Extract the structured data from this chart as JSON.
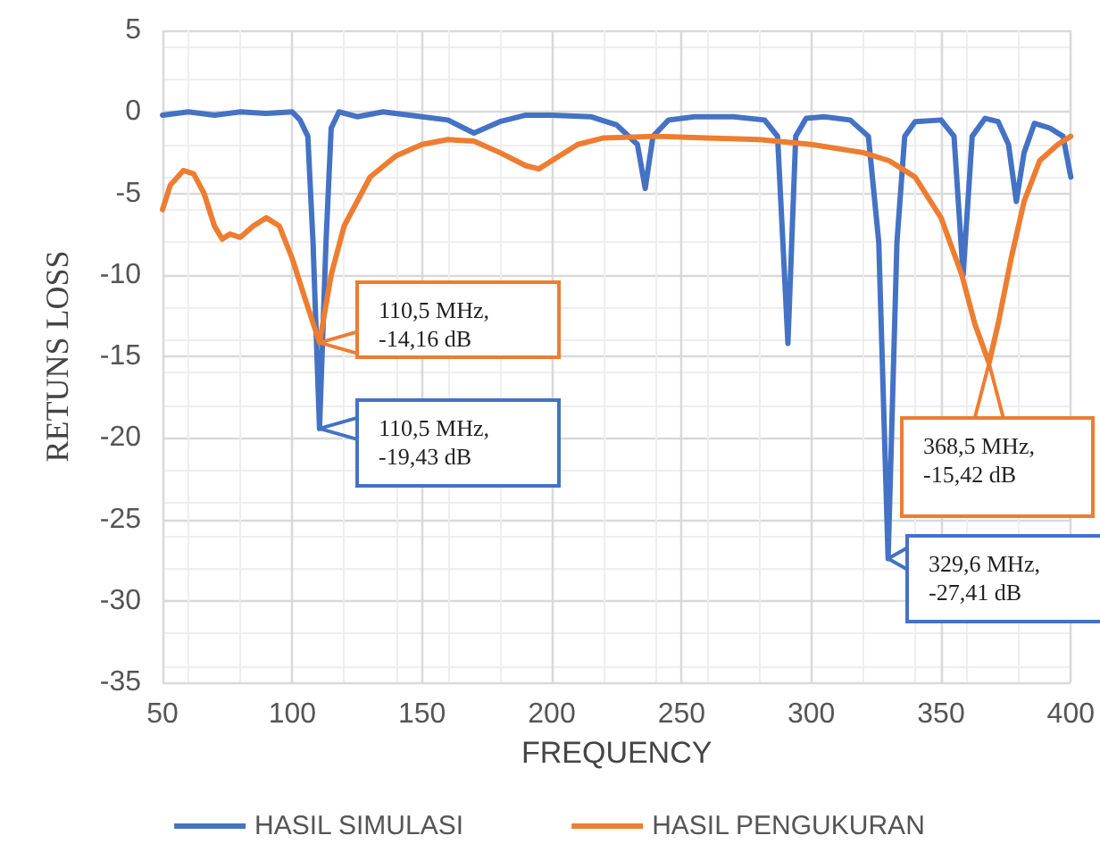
{
  "chart_data": {
    "type": "line",
    "xlabel": "FREQUENCY",
    "ylabel": "RETUNS LOSS",
    "xlim": [
      50,
      400
    ],
    "xticks": [
      50,
      100,
      150,
      200,
      250,
      300,
      350,
      400
    ],
    "ylim": [
      -35,
      5
    ],
    "yticks": [
      -35,
      -30,
      -25,
      -20,
      -15,
      -10,
      -5,
      0,
      5
    ],
    "grid": true,
    "legend": "bottom",
    "marker": "none",
    "line_style": "solid",
    "series": [
      {
        "name": "HASIL SIMULASI",
        "color": "#4472c4",
        "x": [
          50,
          60,
          70,
          80,
          90,
          100,
          103,
          106,
          108,
          110.5,
          113,
          115,
          118,
          125,
          135,
          150,
          160,
          170,
          180,
          190,
          200,
          215,
          225,
          233,
          236,
          239,
          245,
          255,
          270,
          282,
          287,
          291,
          294,
          298,
          305,
          315,
          322,
          326,
          329.6,
          333,
          336,
          340,
          350,
          355,
          358.5,
          362,
          367,
          372,
          376,
          379,
          382,
          386,
          392,
          397,
          400
        ],
        "values": [
          -0.2,
          0,
          -0.2,
          0,
          -0.1,
          0,
          -0.5,
          -1.5,
          -8,
          -19.43,
          -8,
          -1,
          0,
          -0.3,
          0,
          -0.3,
          -0.5,
          -1.3,
          -0.6,
          -0.2,
          -0.2,
          -0.3,
          -0.8,
          -2,
          -4.7,
          -1.5,
          -0.5,
          -0.3,
          -0.3,
          -0.5,
          -1.5,
          -14.2,
          -1.5,
          -0.4,
          -0.3,
          -0.5,
          -1.5,
          -8,
          -27.41,
          -8,
          -1.5,
          -0.6,
          -0.5,
          -1.5,
          -10,
          -1.5,
          -0.4,
          -0.6,
          -2,
          -5.5,
          -2.5,
          -0.7,
          -1,
          -1.5,
          -4
        ]
      },
      {
        "name": "HASIL PENGUKURAN",
        "color": "#ed7d31",
        "x": [
          50,
          53,
          58,
          62,
          66,
          70,
          73,
          76,
          80,
          85,
          90,
          95,
          100,
          105,
          110.5,
          115,
          120,
          130,
          140,
          150,
          160,
          170,
          180,
          190,
          195,
          200,
          210,
          220,
          240,
          260,
          280,
          300,
          320,
          330,
          340,
          350,
          358,
          363,
          368.5,
          372,
          377,
          382,
          388,
          395,
          400
        ],
        "values": [
          -6,
          -4.5,
          -3.6,
          -3.8,
          -5,
          -7,
          -7.8,
          -7.5,
          -7.7,
          -7,
          -6.5,
          -7,
          -9,
          -11.5,
          -14.16,
          -10,
          -7,
          -4,
          -2.7,
          -2,
          -1.7,
          -1.8,
          -2.5,
          -3.3,
          -3.5,
          -3,
          -2,
          -1.6,
          -1.5,
          -1.6,
          -1.7,
          -2,
          -2.5,
          -3,
          -4,
          -6.5,
          -10,
          -13,
          -15.42,
          -13,
          -9,
          -5.5,
          -3,
          -2,
          -1.5
        ]
      }
    ],
    "annotations": [
      {
        "text": "110,5 MHz,\n-14,16 dB",
        "x": 110.5,
        "y": -14.16
      },
      {
        "text": "110,5 MHz,\n-19,43 dB",
        "x": 110.5,
        "y": -19.43
      },
      {
        "text": "329,6 MHz,\n-27,41 dB",
        "x": 329.6,
        "y": -27.41
      },
      {
        "text": "368,5 MHz,\n-15,42 dB",
        "x": 368.5,
        "y": -15.42
      }
    ]
  }
}
